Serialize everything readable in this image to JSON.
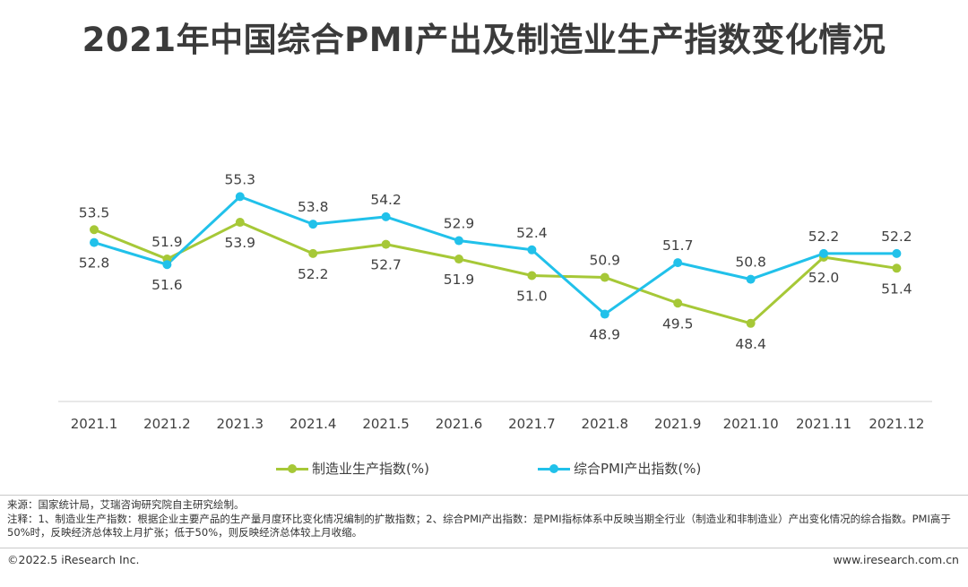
{
  "title": "2021年中国综合PMI产出及制造业生产指数变化情况",
  "chart_data": {
    "type": "line",
    "title": "2021年中国综合PMI产出及制造业生产指数变化情况",
    "categories": [
      "2021.1",
      "2021.2",
      "2021.3",
      "2021.4",
      "2021.5",
      "2021.6",
      "2021.7",
      "2021.8",
      "2021.9",
      "2021.10",
      "2021.11",
      "2021.12"
    ],
    "series": [
      {
        "name": "制造业生产指数(%)",
        "color": "#a6c837",
        "values": [
          53.5,
          51.9,
          53.9,
          52.2,
          52.7,
          51.9,
          51.0,
          50.9,
          49.5,
          48.4,
          52.0,
          51.4
        ]
      },
      {
        "name": "综合PMI产出指数(%)",
        "color": "#21c1ea",
        "values": [
          52.8,
          51.6,
          55.3,
          53.8,
          54.2,
          52.9,
          52.4,
          48.9,
          51.7,
          50.8,
          52.2,
          52.2
        ]
      }
    ],
    "ylim": [
      44,
      58
    ],
    "grid": false,
    "legend": "bottom-center"
  },
  "legend": {
    "series1": "制造业生产指数(%)",
    "series2": "综合PMI产出指数(%)"
  },
  "notes": {
    "source": "来源：国家统计局，艾瑞咨询研究院自主研究绘制。",
    "note": "注释：1、制造业生产指数：根据企业主要产品的生产量月度环比变化情况编制的扩散指数；2、综合PMI产出指数：是PMI指标体系中反映当期全行业（制造业和非制造业）产出变化情况的综合指数。PMI高于50%时，反映经济总体较上月扩张；低于50%，则反映经济总体较上月收缩。"
  },
  "footer": {
    "copyright": "©2022.5 iResearch Inc.",
    "website": "www.iresearch.com.cn"
  }
}
